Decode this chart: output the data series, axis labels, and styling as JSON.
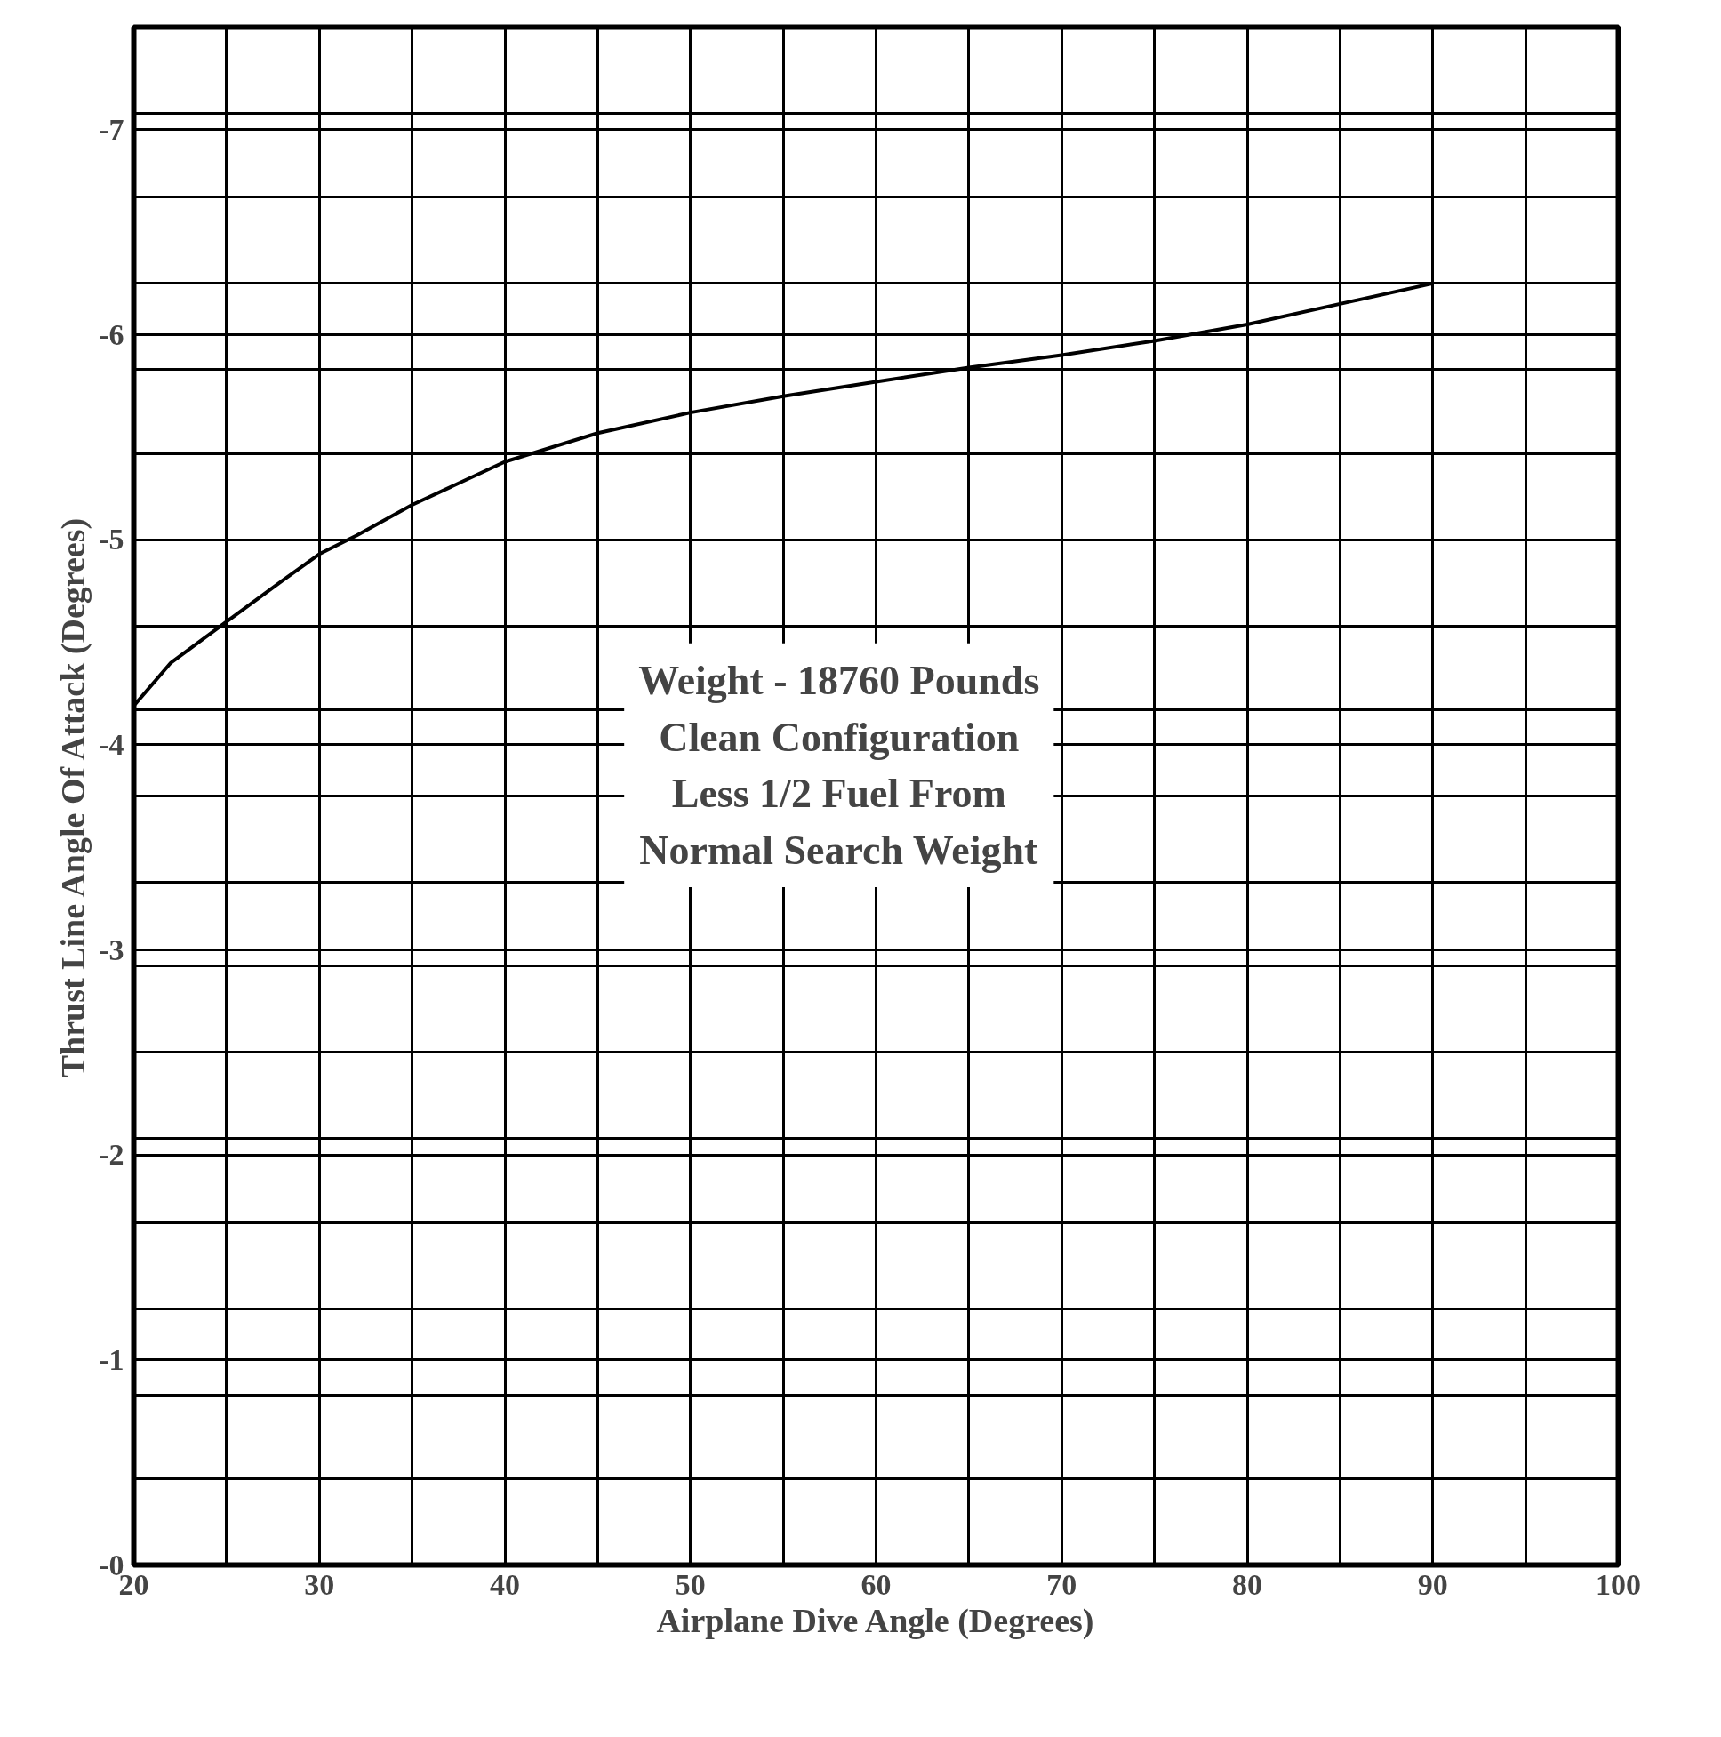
{
  "chart_data": {
    "type": "line",
    "xlabel": "Airplane Dive Angle (Degrees)",
    "ylabel": "Thrust Line Angle Of Attack (Degrees)",
    "x": [
      20,
      22,
      25,
      28,
      30,
      32,
      35,
      40,
      45,
      50,
      55,
      60,
      65,
      70,
      75,
      80,
      85,
      90
    ],
    "series": [
      {
        "color": "#000000",
        "values": [
          -4.19,
          -4.4,
          -4.6,
          -4.8,
          -4.93,
          -5.02,
          -5.17,
          -5.38,
          -5.52,
          -5.62,
          -5.7,
          -5.77,
          -5.84,
          -5.9,
          -5.97,
          -6.05,
          -6.15,
          -6.25
        ]
      }
    ],
    "xlim": [
      20,
      100
    ],
    "ylim": [
      0,
      -7.5
    ],
    "xticks": [
      20,
      {
        "value": 25,
        "label": null
      },
      30,
      {
        "value": 35,
        "label": null
      },
      40,
      {
        "value": 45,
        "label": null
      },
      50,
      {
        "value": 55,
        "label": null
      },
      60,
      {
        "value": 65,
        "label": null
      },
      70,
      {
        "value": 75,
        "label": null
      },
      80,
      {
        "value": 85,
        "label": null
      },
      90,
      {
        "value": 95,
        "label": null
      },
      100
    ],
    "yticks": [
      {
        "value": 0,
        "label": "-0"
      },
      {
        "value": -0.42,
        "label": null
      },
      {
        "value": -0.83,
        "label": null
      },
      -1,
      {
        "value": -1.25,
        "label": null
      },
      {
        "value": -1.67,
        "label": null
      },
      -2,
      {
        "value": -2.08,
        "label": null
      },
      {
        "value": -2.5,
        "label": null
      },
      {
        "value": -2.92,
        "label": null
      },
      -3,
      {
        "value": -3.33,
        "label": null
      },
      {
        "value": -3.75,
        "label": null
      },
      -4,
      {
        "value": -4.17,
        "label": null
      },
      {
        "value": -4.58,
        "label": null
      },
      {
        "value": -5,
        "label": "-5"
      },
      {
        "value": -5.42,
        "label": null
      },
      {
        "value": -5.83,
        "label": null
      },
      -6,
      {
        "value": -6.25,
        "label": null
      },
      {
        "value": -6.67,
        "label": null
      },
      -7,
      {
        "value": -7.08,
        "label": null
      }
    ],
    "grid": true,
    "line_style": "solid",
    "marker": "none",
    "annotations": [
      "Weight - 18760 Pounds\nClean Configuration\nLess 1/2 Fuel From\nNormal Search Weight"
    ]
  }
}
